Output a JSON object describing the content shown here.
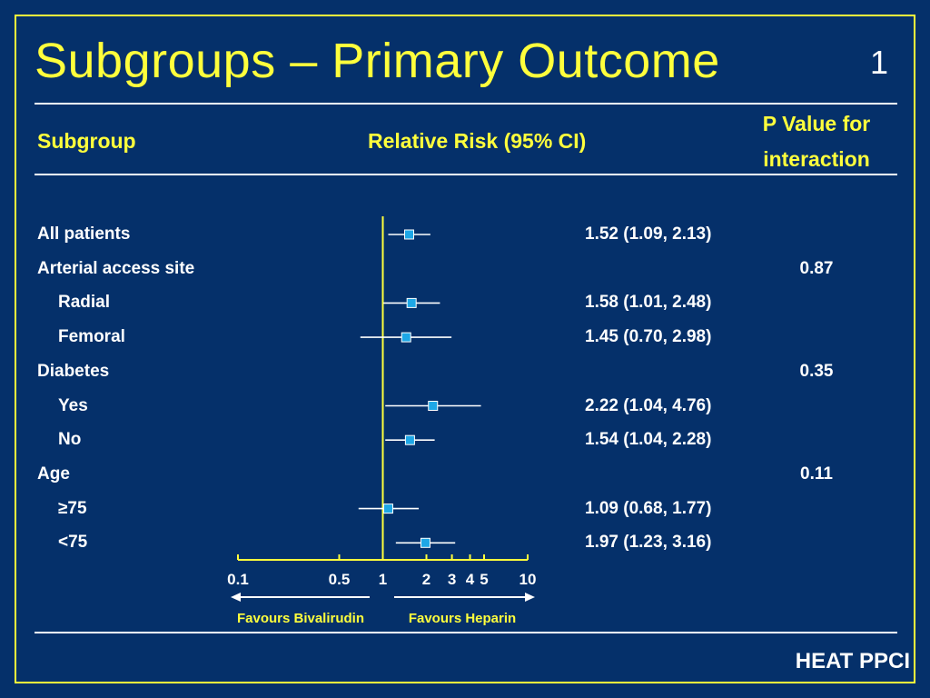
{
  "slide": {
    "title": "Subgroups – Primary Outcome",
    "number": "1",
    "footer": "HEAT PPCI"
  },
  "headers": {
    "subgroup": "Subgroup",
    "relative_risk": "Relative Risk (95% CI)",
    "p_value_line1": "P Value for",
    "p_value_line2": "interaction"
  },
  "chart_data": {
    "type": "forest",
    "x_scale": "log",
    "xlim": [
      0.1,
      10
    ],
    "reference_line": 1,
    "x_ticks": [
      0.1,
      0.5,
      1,
      2,
      3,
      4,
      5,
      10
    ],
    "x_tick_labels": [
      "0.1",
      "0.5",
      "1",
      "2",
      "3",
      "4",
      "5",
      "10"
    ],
    "favours_left": "Favours Bivalirudin",
    "favours_right": "Favours Heparin",
    "rows": [
      {
        "label": "All patients",
        "indent": false,
        "rr": 1.52,
        "lo": 1.09,
        "hi": 2.13,
        "estimate_text": "1.52 (1.09, 2.13)",
        "p_interaction": ""
      },
      {
        "label": "Arterial access site",
        "indent": false,
        "rr": null,
        "lo": null,
        "hi": null,
        "estimate_text": "",
        "p_interaction": "0.87"
      },
      {
        "label": "Radial",
        "indent": true,
        "rr": 1.58,
        "lo": 1.01,
        "hi": 2.48,
        "estimate_text": "1.58 (1.01, 2.48)",
        "p_interaction": ""
      },
      {
        "label": "Femoral",
        "indent": true,
        "rr": 1.45,
        "lo": 0.7,
        "hi": 2.98,
        "estimate_text": "1.45 (0.70, 2.98)",
        "p_interaction": ""
      },
      {
        "label": "Diabetes",
        "indent": false,
        "rr": null,
        "lo": null,
        "hi": null,
        "estimate_text": "",
        "p_interaction": "0.35"
      },
      {
        "label": "Yes",
        "indent": true,
        "rr": 2.22,
        "lo": 1.04,
        "hi": 4.76,
        "estimate_text": "2.22 (1.04, 4.76)",
        "p_interaction": ""
      },
      {
        "label": "No",
        "indent": true,
        "rr": 1.54,
        "lo": 1.04,
        "hi": 2.28,
        "estimate_text": "1.54 (1.04, 2.28)",
        "p_interaction": ""
      },
      {
        "label": "Age",
        "indent": false,
        "rr": null,
        "lo": null,
        "hi": null,
        "estimate_text": "",
        "p_interaction": "0.11"
      },
      {
        "label": "≥75",
        "indent": true,
        "rr": 1.09,
        "lo": 0.68,
        "hi": 1.77,
        "estimate_text": "1.09 (0.68, 1.77)",
        "p_interaction": ""
      },
      {
        "label": "<75",
        "indent": true,
        "rr": 1.97,
        "lo": 1.23,
        "hi": 3.16,
        "estimate_text": "1.97 (1.23, 3.16)",
        "p_interaction": ""
      }
    ]
  },
  "colors": {
    "background": "#05306a",
    "title": "#ffff3c",
    "text": "#ffffff",
    "marker_fill": "#1ea7e6",
    "marker_stroke": "#ffffff"
  }
}
